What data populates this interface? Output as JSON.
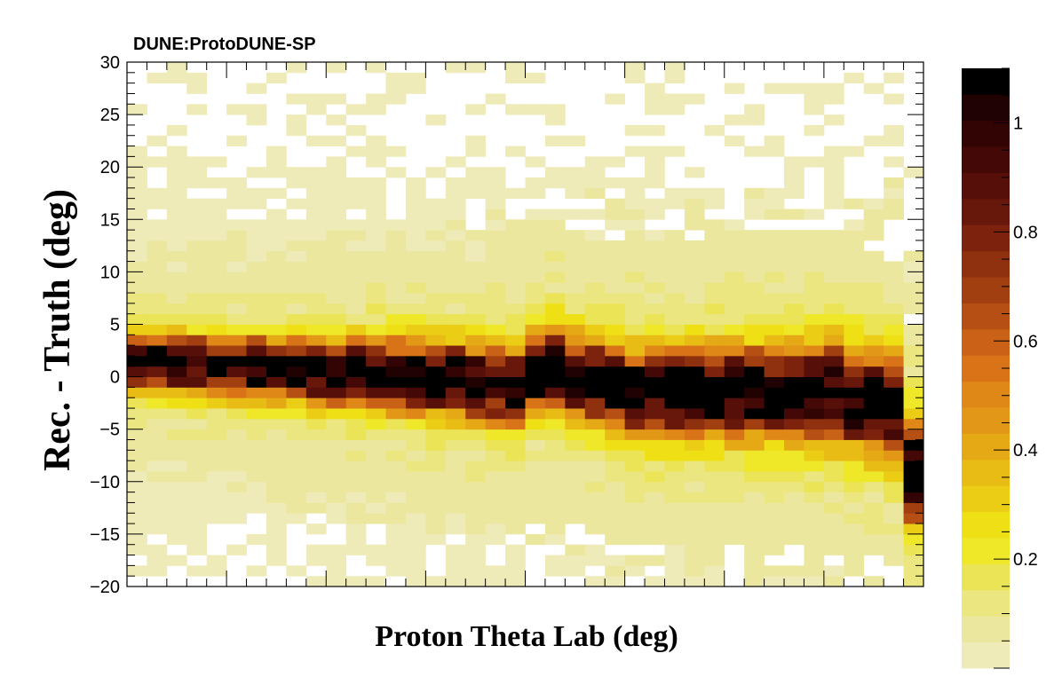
{
  "chart_data": {
    "type": "heatmap",
    "experiment_label": "DUNE:ProtoDUNE-SP",
    "xlabel": "Proton Theta Lab (deg)",
    "ylabel": "Rec. - Truth (deg)",
    "x_tick_labels": [],
    "ylim": [
      -20,
      30
    ],
    "y_ticks": [
      30,
      25,
      20,
      15,
      10,
      5,
      0,
      -5,
      -10,
      -15,
      -20
    ],
    "z_range": [
      0,
      1.1
    ],
    "z_ticks": [
      1,
      0.8,
      0.6,
      0.4,
      0.2
    ],
    "n_x_bins": 40,
    "n_y_bins": 50,
    "colormap": [
      "#efebb8",
      "#ece79f",
      "#ebe67f",
      "#eae456",
      "#efe829",
      "#efe016",
      "#ebcd16",
      "#e8bb15",
      "#e5a916",
      "#e29816",
      "#df8717",
      "#d87417",
      "#c96116",
      "#b54f13",
      "#a23f11",
      "#8f300f",
      "#7c220d",
      "#68170b",
      "#560f09",
      "#440907",
      "#320504",
      "#200202",
      "#000000"
    ],
    "description_note": "Normalized (per x-column) 2D histogram of reconstructed minus true proton angle vs. true angle; peak ridge near 0 deg.",
    "ridge_profile": {
      "x_bin_centers_index": [
        0,
        5,
        10,
        15,
        19,
        20,
        21,
        22,
        25,
        30,
        35,
        38,
        39
      ],
      "center_deg": [
        1.5,
        1.0,
        0.5,
        0.0,
        -1.0,
        0.5,
        1.0,
        0.0,
        -1.5,
        -1.5,
        -1.5,
        -3.0,
        -9.0
      ]
    },
    "grid": false,
    "legend": "colorbar-right"
  }
}
